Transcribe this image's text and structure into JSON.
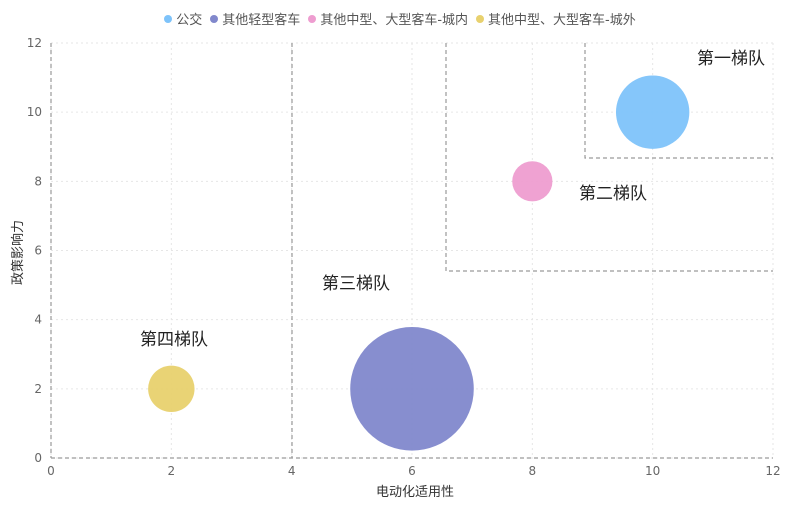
{
  "chart_data": {
    "type": "bubble",
    "xlabel": "电动化适用性",
    "ylabel": "政策影响力",
    "xlim": [
      0,
      12
    ],
    "ylim": [
      0,
      12
    ],
    "x_ticks": [
      "0",
      "2",
      "4",
      "6",
      "8",
      "10",
      "12"
    ],
    "y_ticks": [
      "0",
      "2",
      "4",
      "6",
      "8",
      "10",
      "12"
    ],
    "grid": true,
    "legend_position": "top-center",
    "series": [
      {
        "name": "公交",
        "color": "#7ec3fa",
        "x": 10,
        "y": 10,
        "size": 30
      },
      {
        "name": "其他轻型客车",
        "color": "#8188cc",
        "x": 6,
        "y": 2,
        "size": 85
      },
      {
        "name": "其他中型、大型客车-城内",
        "color": "#ee9dd0",
        "x": 8,
        "y": 8,
        "size": 9
      },
      {
        "name": "其他中型、大型客车-城外",
        "color": "#e8d16e",
        "x": 2,
        "y": 2,
        "size": 12
      }
    ],
    "annotations": [
      {
        "text": "第一梯队"
      },
      {
        "text": "第二梯队"
      },
      {
        "text": "第三梯队"
      },
      {
        "text": "第四梯队"
      }
    ]
  }
}
